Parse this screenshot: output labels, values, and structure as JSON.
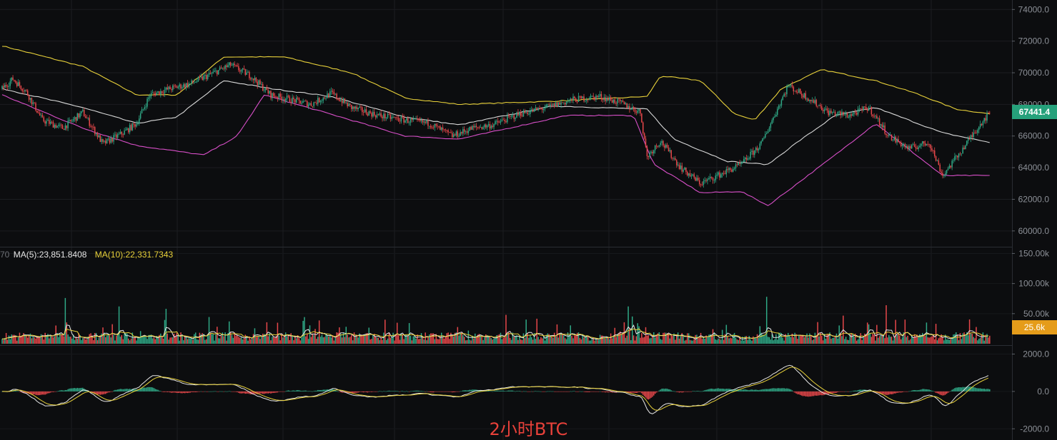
{
  "chart_data": {
    "type": "candlestick",
    "asset": "BTC",
    "caption": "2小时BTC",
    "last_price": "67441.4",
    "price_axis": {
      "ticks": [
        "74000.0",
        "72000.0",
        "70000.0",
        "68000.0",
        "66000.0",
        "64000.0",
        "62000.0",
        "60000.0"
      ],
      "ylim": [
        59000,
        74600
      ]
    },
    "volume_axis": {
      "ticks": [
        "150.00k",
        "100.00k",
        "50.00k"
      ],
      "current": "25.6k",
      "ylim": [
        0,
        160000
      ]
    },
    "volume_legend": {
      "prefix_cut": "70",
      "ma5_label": "MA(5):23,851.8408",
      "ma10_label": "MA(10):22,331.7343"
    },
    "macd_axis": {
      "ticks": [
        "2000.0",
        "0.0",
        "-2000.0"
      ],
      "ylim": [
        -2600,
        2400
      ]
    },
    "price_anchors": [
      [
        0,
        69000
      ],
      [
        8,
        69600
      ],
      [
        18,
        68800
      ],
      [
        30,
        67000
      ],
      [
        45,
        66500
      ],
      [
        60,
        67500
      ],
      [
        75,
        65500
      ],
      [
        90,
        66200
      ],
      [
        100,
        66800
      ],
      [
        110,
        68600
      ],
      [
        125,
        69000
      ],
      [
        140,
        69300
      ],
      [
        155,
        69900
      ],
      [
        170,
        70500
      ],
      [
        185,
        69800
      ],
      [
        200,
        68600
      ],
      [
        215,
        68300
      ],
      [
        230,
        68000
      ],
      [
        245,
        68700
      ],
      [
        260,
        67800
      ],
      [
        280,
        67300
      ],
      [
        300,
        67000
      ],
      [
        318,
        66800
      ],
      [
        335,
        66000
      ],
      [
        350,
        66500
      ],
      [
        365,
        66700
      ],
      [
        385,
        67400
      ],
      [
        405,
        67800
      ],
      [
        425,
        68300
      ],
      [
        445,
        68500
      ],
      [
        460,
        68100
      ],
      [
        475,
        67500
      ],
      [
        480,
        64700
      ],
      [
        490,
        65700
      ],
      [
        505,
        64000
      ],
      [
        520,
        63000
      ],
      [
        535,
        63600
      ],
      [
        550,
        64200
      ],
      [
        565,
        65500
      ],
      [
        585,
        69200
      ],
      [
        600,
        68400
      ],
      [
        615,
        67500
      ],
      [
        630,
        67300
      ],
      [
        645,
        67800
      ],
      [
        660,
        66000
      ],
      [
        675,
        65200
      ],
      [
        690,
        65600
      ],
      [
        700,
        63500
      ],
      [
        715,
        65200
      ],
      [
        730,
        67000
      ],
      [
        735,
        67441
      ]
    ],
    "bollinger": {
      "upper": [
        [
          0,
          71700
        ],
        [
          60,
          70400
        ],
        [
          100,
          68600
        ],
        [
          130,
          68600
        ],
        [
          165,
          71000
        ],
        [
          210,
          71000
        ],
        [
          260,
          70000
        ],
        [
          300,
          68400
        ],
        [
          340,
          68000
        ],
        [
          410,
          68200
        ],
        [
          480,
          68500
        ],
        [
          490,
          69800
        ],
        [
          520,
          69500
        ],
        [
          545,
          67400
        ],
        [
          560,
          67000
        ],
        [
          580,
          69000
        ],
        [
          610,
          70200
        ],
        [
          650,
          69500
        ],
        [
          680,
          68700
        ],
        [
          710,
          67700
        ],
        [
          735,
          67400
        ]
      ],
      "middle": [
        [
          0,
          69000
        ],
        [
          60,
          67800
        ],
        [
          100,
          66800
        ],
        [
          130,
          67200
        ],
        [
          165,
          69500
        ],
        [
          200,
          69000
        ],
        [
          245,
          68500
        ],
        [
          300,
          67200
        ],
        [
          340,
          66700
        ],
        [
          410,
          67900
        ],
        [
          480,
          67700
        ],
        [
          500,
          65800
        ],
        [
          540,
          64400
        ],
        [
          570,
          64200
        ],
        [
          590,
          65500
        ],
        [
          620,
          67300
        ],
        [
          650,
          67800
        ],
        [
          700,
          66200
        ],
        [
          735,
          65600
        ]
      ],
      "lower": [
        [
          0,
          68600
        ],
        [
          60,
          66500
        ],
        [
          100,
          65400
        ],
        [
          150,
          64800
        ],
        [
          175,
          66000
        ],
        [
          195,
          68600
        ],
        [
          260,
          67000
        ],
        [
          300,
          66000
        ],
        [
          340,
          65800
        ],
        [
          420,
          67300
        ],
        [
          470,
          67300
        ],
        [
          485,
          64200
        ],
        [
          520,
          62400
        ],
        [
          550,
          62500
        ],
        [
          570,
          61600
        ],
        [
          620,
          64800
        ],
        [
          650,
          66800
        ],
        [
          700,
          63500
        ],
        [
          735,
          63500
        ]
      ]
    }
  }
}
